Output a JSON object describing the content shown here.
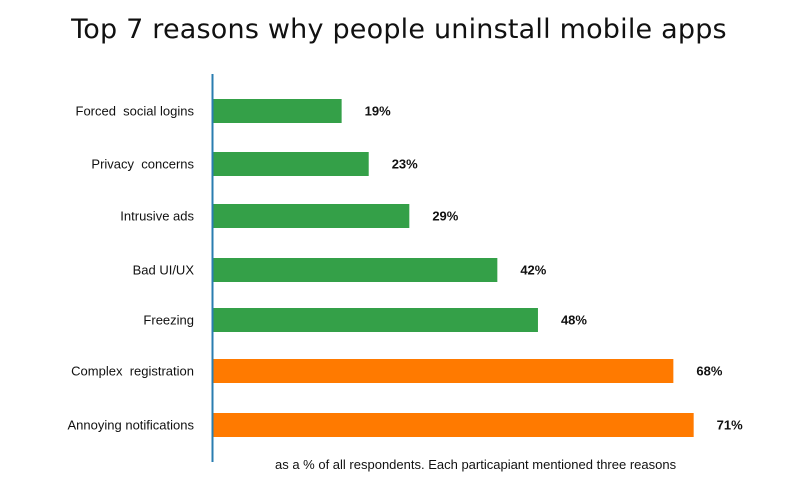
{
  "chart_data": {
    "type": "bar",
    "orientation": "horizontal",
    "title": "Top 7 reasons why people uninstall mobile apps",
    "note": "as a % of all respondents.  Each particapiant mentioned three reasons",
    "categories": [
      "Forced  social logins",
      "Privacy  concerns",
      "Intrusive ads",
      "Bad UI/UX",
      "Freezing",
      "Complex  registration",
      "Annoying notifications"
    ],
    "values": [
      19,
      23,
      29,
      42,
      48,
      68,
      71
    ],
    "value_labels": [
      "19%",
      "23%",
      "29%",
      "42%",
      "48%",
      "68%",
      "71%"
    ],
    "colors": [
      "#34a048",
      "#34a048",
      "#34a048",
      "#34a048",
      "#34a048",
      "#ff7a00",
      "#ff7a00"
    ],
    "axis_color": "#2a7db0",
    "grid": false,
    "legend": "none"
  }
}
